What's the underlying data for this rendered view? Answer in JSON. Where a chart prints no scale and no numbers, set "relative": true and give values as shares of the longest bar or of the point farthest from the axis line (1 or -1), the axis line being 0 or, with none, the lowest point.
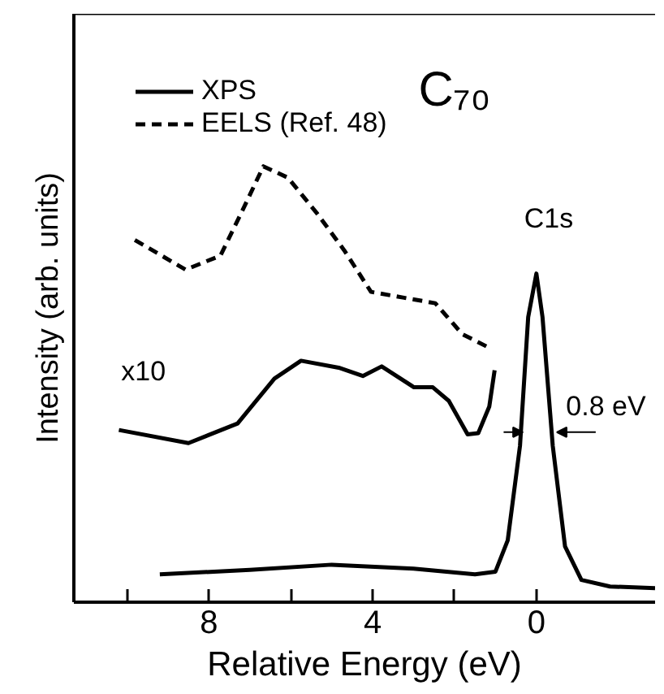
{
  "chart_data": {
    "type": "line",
    "title": "C₇₀",
    "xlabel": "Relative Energy (eV)",
    "ylabel": "Intensity (arb. units)",
    "relative": true,
    "xlim": [
      11.3,
      -2.9
    ],
    "xticks": [
      {
        "value": 10,
        "label": null
      },
      8,
      {
        "value": 6,
        "label": null
      },
      4,
      {
        "value": 2,
        "label": null
      },
      0
    ],
    "tick_labels": "x",
    "grid": false,
    "legend": "top left",
    "marker": "none",
    "series": [
      {
        "name": "XPS",
        "color": "#000000",
        "line_style": "solid",
        "x": [
          9.2,
          7,
          5,
          3,
          1.5,
          1.0,
          0.7,
          0.4,
          0.2,
          0,
          -0.15,
          -0.4,
          -0.7,
          -1.1,
          -1.8,
          -2.9
        ],
        "values": [
          0.064,
          0.074,
          0.086,
          0.077,
          0.064,
          0.07,
          0.142,
          0.359,
          0.654,
          0.754,
          0.654,
          0.359,
          0.128,
          0.051,
          0.036,
          0.032
        ]
      },
      {
        "color": "#000000",
        "line_style": "solid",
        "x": [
          10.2,
          8.5,
          7.3,
          6.4,
          5.75,
          4.83,
          4.24,
          3.78,
          2.99,
          2.53,
          2.14,
          1.68,
          1.42,
          1.15,
          1.02
        ],
        "values": [
          0.395,
          0.365,
          0.41,
          0.513,
          0.554,
          0.538,
          0.519,
          0.541,
          0.493,
          0.493,
          0.462,
          0.385,
          0.388,
          0.449,
          0.532
        ]
      },
      {
        "name": "EELS (Ref. 48)",
        "color": "#000000",
        "line_style": "dashed",
        "x": [
          9.81,
          8.57,
          7.72,
          7.19,
          6.67,
          6.07,
          5.35,
          4.7,
          4.04,
          3.26,
          2.47,
          1.81,
          1.22
        ],
        "values": [
          0.831,
          0.763,
          0.795,
          0.897,
          1.0,
          0.974,
          0.891,
          0.808,
          0.712,
          0.699,
          0.686,
          0.615,
          0.587
        ]
      }
    ],
    "annotations": [
      "x10",
      "C1s",
      "0.8 eV"
    ]
  }
}
